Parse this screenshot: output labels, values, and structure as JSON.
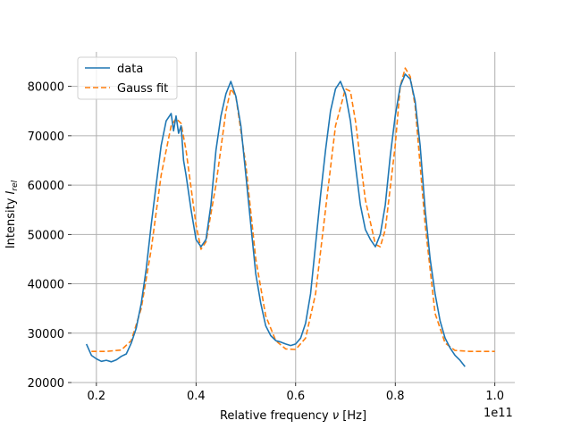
{
  "chart_data": {
    "type": "line",
    "xlabel_main": "Relative frequency ",
    "xlabel_symbol": "ν",
    "xlabel_unit": " [Hz]",
    "ylabel_main": "Intensity ",
    "ylabel_symbol": "I",
    "ylabel_sub": "rel",
    "x_offset_label": "1e11",
    "xlim": [
      0.15,
      1.04
    ],
    "ylim": [
      20000,
      87000
    ],
    "x_ticks": [
      0.2,
      0.4,
      0.6,
      0.8,
      1.0
    ],
    "x_tick_labels": [
      "0.2",
      "0.4",
      "0.6",
      "0.8",
      "1.0"
    ],
    "y_ticks": [
      20000,
      30000,
      40000,
      50000,
      60000,
      70000,
      80000
    ],
    "y_tick_labels": [
      "20000",
      "30000",
      "40000",
      "50000",
      "60000",
      "70000",
      "80000"
    ],
    "grid": true,
    "legend_position": "upper-left",
    "colors": {
      "data": "#1f77b4",
      "fit": "#ff7f0e",
      "grid": "#b0b0b0"
    },
    "series": [
      {
        "name": "data",
        "style": "solid",
        "x": [
          0.18,
          0.19,
          0.2,
          0.21,
          0.22,
          0.23,
          0.24,
          0.25,
          0.26,
          0.27,
          0.28,
          0.29,
          0.3,
          0.31,
          0.32,
          0.33,
          0.34,
          0.35,
          0.355,
          0.36,
          0.365,
          0.37,
          0.375,
          0.38,
          0.39,
          0.4,
          0.41,
          0.42,
          0.43,
          0.44,
          0.45,
          0.46,
          0.47,
          0.48,
          0.49,
          0.5,
          0.51,
          0.52,
          0.53,
          0.54,
          0.55,
          0.56,
          0.57,
          0.58,
          0.59,
          0.6,
          0.61,
          0.62,
          0.63,
          0.64,
          0.65,
          0.66,
          0.67,
          0.68,
          0.69,
          0.7,
          0.71,
          0.72,
          0.73,
          0.74,
          0.75,
          0.76,
          0.77,
          0.78,
          0.79,
          0.8,
          0.81,
          0.82,
          0.83,
          0.84,
          0.85,
          0.86,
          0.87,
          0.88,
          0.89,
          0.9,
          0.91,
          0.92,
          0.93,
          0.94
        ],
        "y": [
          27800,
          25500,
          24800,
          24300,
          24500,
          24200,
          24600,
          25300,
          25800,
          28000,
          31000,
          36000,
          43000,
          52000,
          60000,
          68000,
          73000,
          74500,
          71000,
          74000,
          70500,
          72000,
          65000,
          62000,
          55000,
          49000,
          47500,
          49000,
          56000,
          67000,
          74000,
          78500,
          81000,
          78000,
          72000,
          62000,
          52000,
          42000,
          36000,
          31500,
          29500,
          28500,
          28200,
          27800,
          27500,
          27800,
          29000,
          32000,
          38000,
          48000,
          58000,
          67000,
          75000,
          79500,
          81000,
          78500,
          73000,
          64000,
          56000,
          51000,
          49000,
          47500,
          50000,
          56000,
          66000,
          74000,
          80000,
          82500,
          81500,
          77000,
          68000,
          55000,
          45000,
          38000,
          32500,
          29000,
          27000,
          25500,
          24500,
          23200
        ]
      },
      {
        "name": "Gauss fit",
        "style": "dashed",
        "x": [
          0.19,
          0.22,
          0.25,
          0.27,
          0.29,
          0.31,
          0.33,
          0.35,
          0.36,
          0.37,
          0.38,
          0.4,
          0.41,
          0.42,
          0.44,
          0.46,
          0.47,
          0.48,
          0.5,
          0.52,
          0.54,
          0.56,
          0.58,
          0.6,
          0.62,
          0.64,
          0.66,
          0.68,
          0.7,
          0.71,
          0.72,
          0.74,
          0.76,
          0.77,
          0.78,
          0.8,
          0.81,
          0.82,
          0.83,
          0.84,
          0.86,
          0.88,
          0.9,
          0.92,
          0.95,
          1.0
        ],
        "y": [
          26300,
          26300,
          26600,
          28500,
          35000,
          47000,
          62000,
          72000,
          73500,
          72500,
          67000,
          52000,
          47000,
          48500,
          60000,
          75000,
          79500,
          78000,
          64000,
          45000,
          33500,
          28500,
          26800,
          26700,
          29000,
          38000,
          55000,
          72000,
          79500,
          79000,
          73000,
          57000,
          48000,
          47500,
          51000,
          68000,
          80000,
          83700,
          82000,
          76000,
          52000,
          34000,
          28000,
          26500,
          26300,
          26300
        ]
      }
    ]
  }
}
